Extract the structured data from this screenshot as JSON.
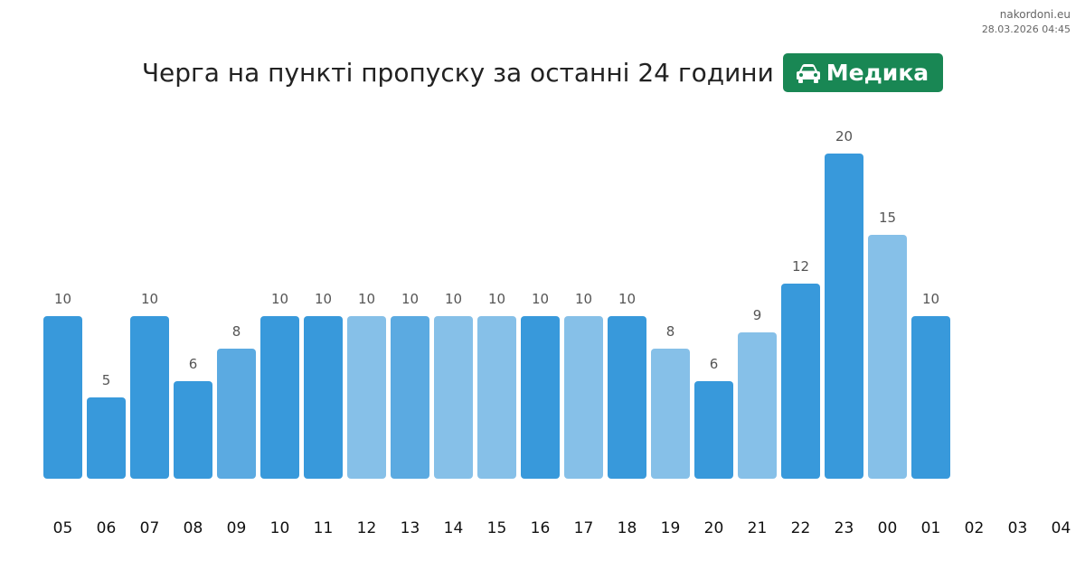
{
  "header": {
    "site": "nakordoni.eu",
    "timestamp": "28.03.2026 04:45",
    "title": "Черга на пункті пропуску за останні 24 години",
    "badge_label": "Медика",
    "badge_icon": "car-icon",
    "badge_color": "#198754"
  },
  "colors": {
    "dark": "#3899DB",
    "medium": "#5BAAE1",
    "light": "#86C0E8",
    "value_label": "#555555",
    "tick_label": "#111111"
  },
  "chart_data": {
    "type": "bar",
    "title": "Черга на пункті пропуску за останні 24 години",
    "categories": [
      "05",
      "06",
      "07",
      "08",
      "09",
      "10",
      "11",
      "12",
      "13",
      "14",
      "15",
      "16",
      "17",
      "18",
      "19",
      "20",
      "21",
      "22",
      "23",
      "00",
      "01",
      "02",
      "03",
      "04"
    ],
    "values": [
      10,
      5,
      10,
      6,
      8,
      10,
      10,
      10,
      10,
      10,
      10,
      10,
      10,
      10,
      8,
      6,
      9,
      12,
      20,
      15,
      10,
      null,
      null,
      null
    ],
    "shade": [
      "dark",
      "dark",
      "dark",
      "dark",
      "medium",
      "dark",
      "dark",
      "light",
      "medium",
      "light",
      "light",
      "dark",
      "light",
      "dark",
      "light",
      "dark",
      "light",
      "dark",
      "dark",
      "light",
      "dark",
      null,
      null,
      null
    ],
    "ylim": [
      0,
      20
    ],
    "grid": false,
    "legend": "none"
  }
}
